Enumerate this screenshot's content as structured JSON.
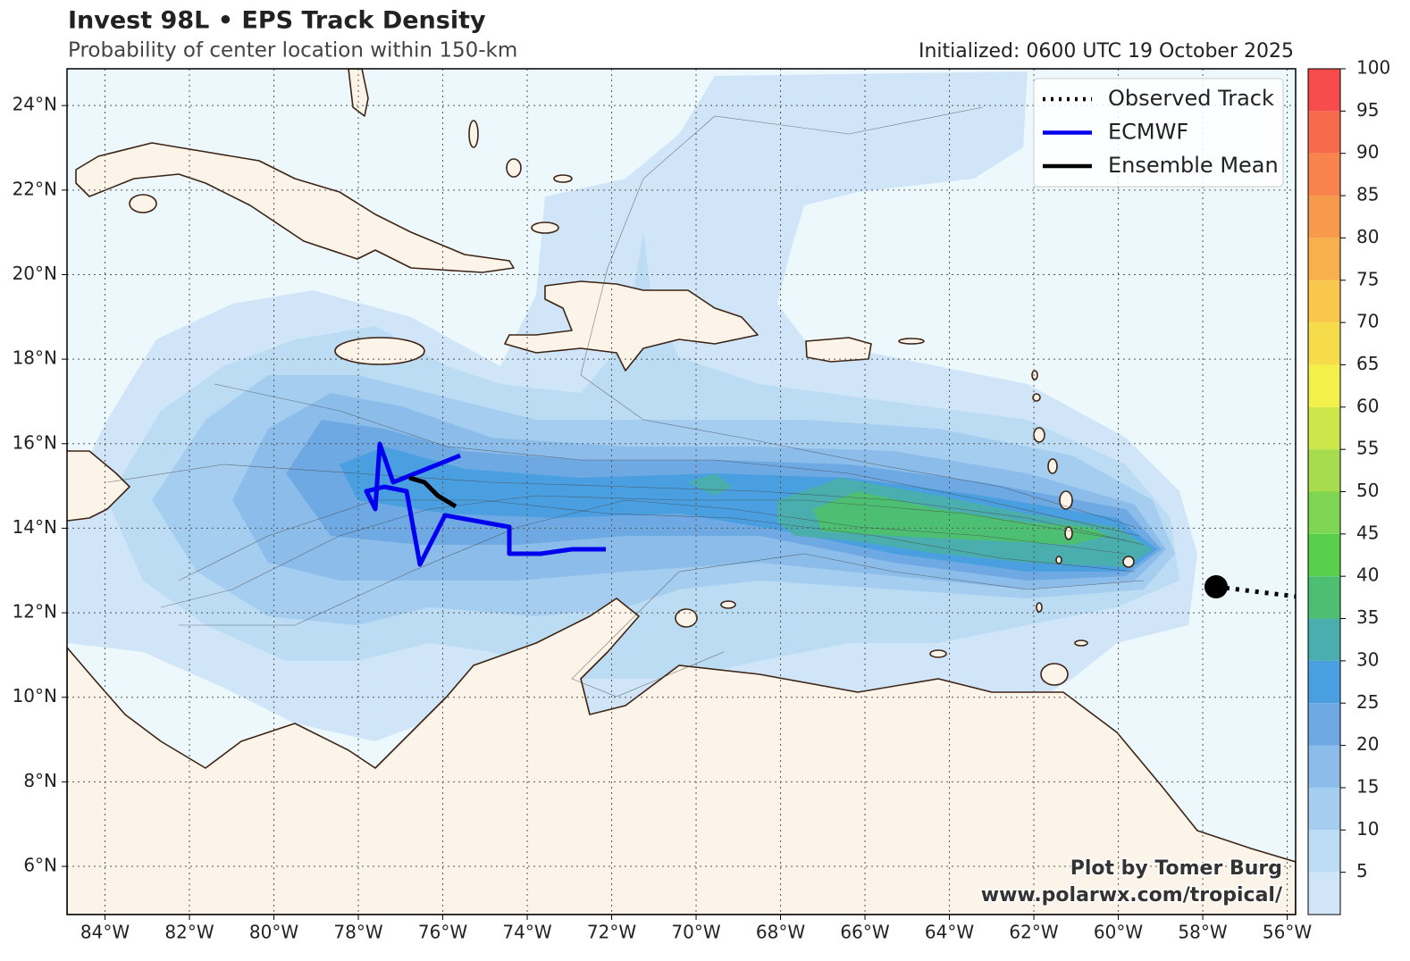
{
  "header": {
    "title": "Invest 98L • EPS Track Density",
    "subtitle": "Probability of center location within 150-km",
    "initialized": "Initialized: 0600 UTC 19 October 2025"
  },
  "map": {
    "lon_range": [
      -84.9,
      -55.8
    ],
    "lat_range": [
      4.86,
      24.87
    ],
    "lon_ticks": [
      {
        "value": -84,
        "label": "84°W"
      },
      {
        "value": -82,
        "label": "82°W"
      },
      {
        "value": -80,
        "label": "80°W"
      },
      {
        "value": -78,
        "label": "78°W"
      },
      {
        "value": -76,
        "label": "76°W"
      },
      {
        "value": -74,
        "label": "74°W"
      },
      {
        "value": -72,
        "label": "72°W"
      },
      {
        "value": -70,
        "label": "70°W"
      },
      {
        "value": -68,
        "label": "68°W"
      },
      {
        "value": -66,
        "label": "66°W"
      },
      {
        "value": -64,
        "label": "64°W"
      },
      {
        "value": -62,
        "label": "62°W"
      },
      {
        "value": -60,
        "label": "60°W"
      },
      {
        "value": -58,
        "label": "58°W"
      },
      {
        "value": -56,
        "label": "56°W"
      }
    ],
    "lat_ticks": [
      {
        "value": 6,
        "label": "6°N"
      },
      {
        "value": 8,
        "label": "8°N"
      },
      {
        "value": 10,
        "label": "10°N"
      },
      {
        "value": 12,
        "label": "12°N"
      },
      {
        "value": 14,
        "label": "14°N"
      },
      {
        "value": 16,
        "label": "16°N"
      },
      {
        "value": 18,
        "label": "18°N"
      },
      {
        "value": 20,
        "label": "20°N"
      },
      {
        "value": 22,
        "label": "22°N"
      },
      {
        "value": 24,
        "label": "24°N"
      }
    ],
    "legend": [
      {
        "name": "Observed Track",
        "color": "#000000"
      },
      {
        "name": "ECMWF",
        "color": "#0000ee"
      },
      {
        "name": "Ensemble Mean",
        "color": "#000000"
      }
    ],
    "colorbar": {
      "range": [
        0,
        100
      ],
      "ticks": [
        5,
        10,
        15,
        20,
        25,
        30,
        35,
        40,
        45,
        50,
        55,
        60,
        65,
        70,
        75,
        80,
        85,
        90,
        95,
        100
      ],
      "colors": [
        "#d0e6f8",
        "#bcdcf4",
        "#a4cdf0",
        "#8cbdea",
        "#6fa9e4",
        "#4a9fe0",
        "#4aaeae",
        "#4cbf73",
        "#57cf4c",
        "#7fd652",
        "#a7dc4e",
        "#cde64a",
        "#f4f04a",
        "#f6dc4b",
        "#f8c74c",
        "#f8b04c",
        "#f89a4c",
        "#f8834c",
        "#f86a4c",
        "#f64c4c"
      ]
    },
    "credit": [
      "Plot by Tomer Burg",
      "www.polarwx.com/tropical/"
    ]
  }
}
